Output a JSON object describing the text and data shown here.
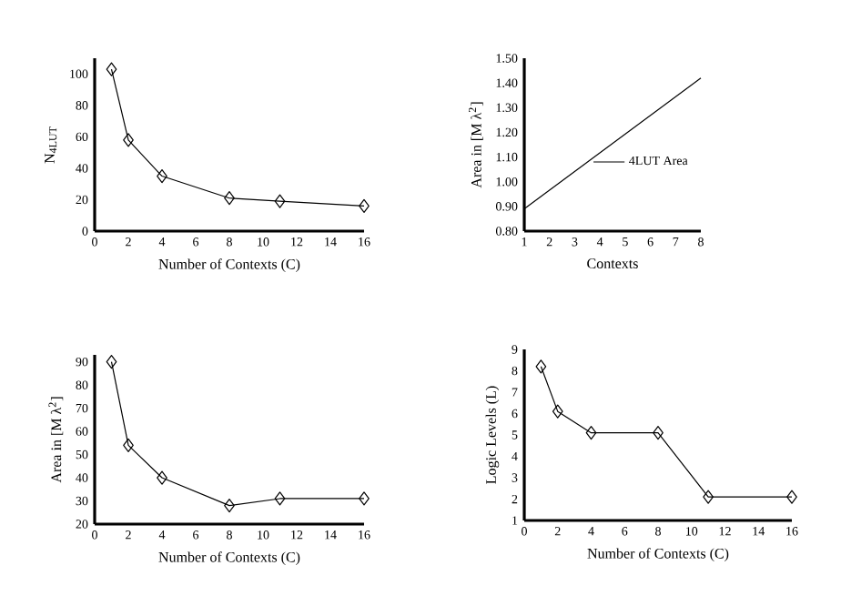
{
  "chart_data": [
    {
      "type": "line",
      "ylabel": "N$_{4LUT}$",
      "xlabel": "Number of Contexts (C)",
      "x": [
        1,
        2,
        4,
        8,
        11,
        16
      ],
      "xlim": [
        0,
        16
      ],
      "xticks": [
        0,
        2,
        4,
        6,
        8,
        10,
        12,
        14,
        16
      ],
      "ylim": [
        0,
        110
      ],
      "yticks": [
        0,
        20,
        40,
        60,
        80,
        100
      ],
      "marker": "diamond",
      "series": [
        {
          "color": "#000000",
          "values": [
            103,
            58,
            35,
            21,
            19,
            16
          ]
        }
      ]
    },
    {
      "type": "line",
      "ylabel": "Area in [M λ$^{2}$]",
      "xlabel": "Contexts",
      "x": [
        1,
        8
      ],
      "xlim": [
        1,
        8
      ],
      "xticks": [
        1,
        2,
        3,
        4,
        5,
        6,
        7,
        8
      ],
      "ylim": [
        0.8,
        1.5
      ],
      "yticks": [
        {
          "value": 0.8,
          "label": "0.80"
        },
        {
          "value": 0.9,
          "label": "0.90"
        },
        {
          "value": 1.0,
          "label": "1.00"
        },
        {
          "value": 1.1,
          "label": "1.10"
        },
        {
          "value": 1.2,
          "label": "1.20"
        },
        {
          "value": 1.3,
          "label": "1.30"
        },
        {
          "value": 1.4,
          "label": "1.40"
        },
        {
          "value": 1.5,
          "label": "1.50"
        }
      ],
      "legend": "right",
      "series": [
        {
          "name": "4LUT Area",
          "color": "#000000",
          "values": [
            0.89,
            1.42
          ]
        }
      ]
    },
    {
      "type": "line",
      "ylabel": "Area in [M λ$^{2}$]",
      "xlabel": "Number of Contexts (C)",
      "x": [
        1,
        2,
        4,
        8,
        11,
        16
      ],
      "xlim": [
        0,
        16
      ],
      "xticks": [
        0,
        2,
        4,
        6,
        8,
        10,
        12,
        14,
        16
      ],
      "ylim": [
        20,
        93
      ],
      "yticks": [
        20,
        30,
        40,
        50,
        60,
        70,
        80,
        90
      ],
      "marker": "diamond",
      "series": [
        {
          "color": "#000000",
          "values": [
            90,
            54,
            40,
            28,
            31,
            31
          ]
        }
      ]
    },
    {
      "type": "line",
      "ylabel": "Logic Levels (L)",
      "xlabel": "Number of Contexts (C)",
      "x": [
        1,
        2,
        4,
        8,
        11,
        16
      ],
      "xlim": [
        0,
        16
      ],
      "xticks": [
        0,
        2,
        4,
        6,
        8,
        10,
        12,
        14,
        16
      ],
      "ylim": [
        1,
        9
      ],
      "yticks": [
        1,
        2,
        3,
        4,
        5,
        6,
        7,
        8,
        9
      ],
      "marker": "diamond",
      "series": [
        {
          "color": "#000000",
          "values": [
            8.2,
            6.1,
            5.1,
            5.1,
            2.1,
            2.1
          ]
        }
      ]
    }
  ]
}
